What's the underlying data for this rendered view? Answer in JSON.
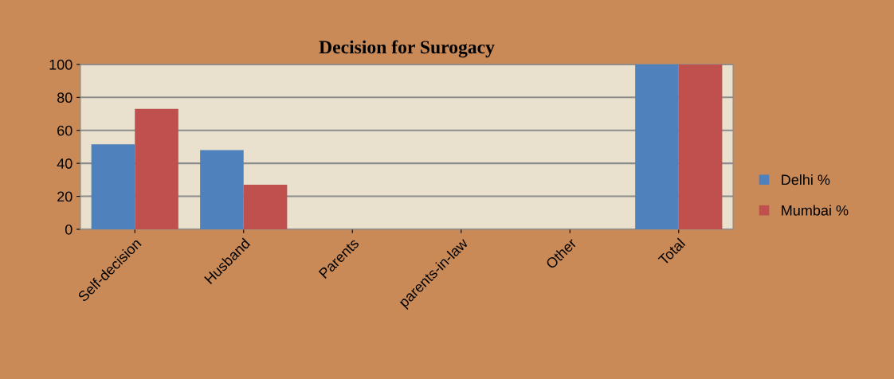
{
  "chart_data": {
    "type": "bar",
    "title": "Decision for Surogacy",
    "categories": [
      "Self-decision",
      "Husband",
      "Parents",
      "parents-in-law",
      "Other",
      "Total"
    ],
    "series": [
      {
        "name": "Delhi %",
        "color": "#4f81bd",
        "values": [
          51.5,
          48,
          0,
          0,
          0,
          100
        ]
      },
      {
        "name": "Mumbai %",
        "color": "#c0504d",
        "values": [
          73,
          27,
          0,
          0,
          0,
          100
        ]
      }
    ],
    "ylim": [
      0,
      100
    ],
    "yticks": [
      0,
      20,
      40,
      60,
      80,
      100
    ],
    "grid": "y",
    "legend": "right"
  }
}
